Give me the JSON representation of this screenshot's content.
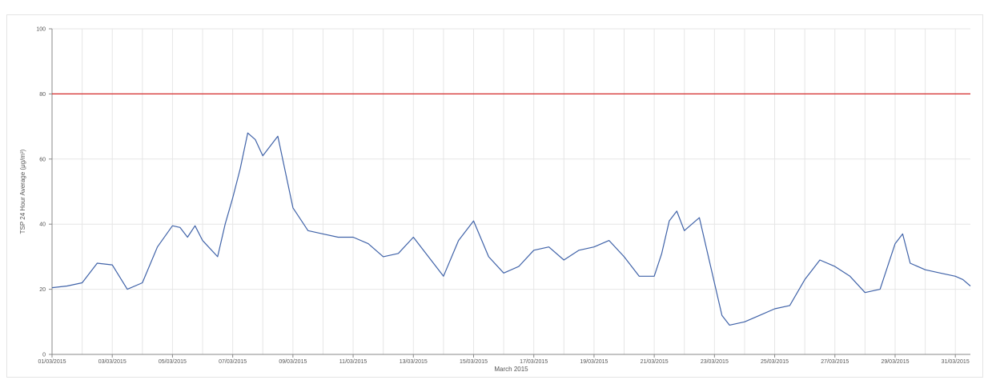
{
  "chart_data": {
    "type": "line",
    "title": "",
    "xlabel": "March 2015",
    "ylabel": "TSP 24 Hour Average (μg/m³)",
    "ylim": [
      0,
      100
    ],
    "xlim": [
      "01/03/2015",
      "31/03/2015 12:00"
    ],
    "yticks": [
      0,
      20,
      40,
      60,
      80,
      100
    ],
    "xticks": [
      "01/03/2015",
      "03/03/2015",
      "05/03/2015",
      "07/03/2015",
      "09/03/2015",
      "11/03/2015",
      "13/03/2015",
      "15/03/2015",
      "17/03/2015",
      "19/03/2015",
      "21/03/2015",
      "23/03/2015",
      "25/03/2015",
      "27/03/2015",
      "29/03/2015",
      "31/03/2015"
    ],
    "grid": true,
    "legend": "none",
    "threshold": {
      "value": 80,
      "color": "#d42a2a"
    },
    "series": [
      {
        "color": "#3f62a8",
        "x": [
          "01/03/2015 00:00",
          "01/03/2015 12:00",
          "02/03/2015 00:00",
          "02/03/2015 12:00",
          "03/03/2015 00:00",
          "03/03/2015 12:00",
          "04/03/2015 00:00",
          "04/03/2015 12:00",
          "05/03/2015 00:00",
          "05/03/2015 06:00",
          "05/03/2015 12:00",
          "05/03/2015 18:00",
          "06/03/2015 00:00",
          "06/03/2015 12:00",
          "06/03/2015 18:00",
          "07/03/2015 00:00",
          "07/03/2015 06:00",
          "07/03/2015 12:00",
          "07/03/2015 18:00",
          "08/03/2015 00:00",
          "08/03/2015 12:00",
          "09/03/2015 00:00",
          "09/03/2015 12:00",
          "10/03/2015 00:00",
          "10/03/2015 12:00",
          "11/03/2015 00:00",
          "11/03/2015 12:00",
          "12/03/2015 00:00",
          "12/03/2015 12:00",
          "13/03/2015 00:00",
          "13/03/2015 12:00",
          "14/03/2015 00:00",
          "14/03/2015 12:00",
          "15/03/2015 00:00",
          "15/03/2015 12:00",
          "16/03/2015 00:00",
          "16/03/2015 12:00",
          "17/03/2015 00:00",
          "17/03/2015 12:00",
          "18/03/2015 00:00",
          "18/03/2015 12:00",
          "19/03/2015 00:00",
          "19/03/2015 12:00",
          "20/03/2015 00:00",
          "20/03/2015 12:00",
          "21/03/2015 00:00",
          "21/03/2015 06:00",
          "21/03/2015 12:00",
          "21/03/2015 18:00",
          "22/03/2015 00:00",
          "22/03/2015 12:00",
          "23/03/2015 00:00",
          "23/03/2015 06:00",
          "23/03/2015 12:00",
          "24/03/2015 00:00",
          "24/03/2015 12:00",
          "25/03/2015 00:00",
          "25/03/2015 12:00",
          "26/03/2015 00:00",
          "26/03/2015 12:00",
          "27/03/2015 00:00",
          "27/03/2015 12:00",
          "28/03/2015 00:00",
          "28/03/2015 12:00",
          "29/03/2015 00:00",
          "29/03/2015 06:00",
          "29/03/2015 12:00",
          "30/03/2015 00:00",
          "30/03/2015 12:00",
          "31/03/2015 00:00",
          "31/03/2015 06:00",
          "31/03/2015 12:00"
        ],
        "y": [
          20.5,
          21,
          22,
          28,
          27.5,
          20,
          22,
          33,
          39.5,
          39,
          36,
          39.5,
          35,
          30,
          40,
          48,
          57,
          68,
          66,
          61,
          67,
          45,
          38,
          37,
          36,
          36,
          34,
          30,
          31,
          36,
          30,
          24,
          35,
          41,
          30,
          25,
          27,
          32,
          33,
          29,
          32,
          33,
          35,
          30,
          24,
          24,
          31,
          41,
          44,
          38,
          42,
          22,
          12,
          9,
          10,
          12,
          14,
          15,
          23,
          29,
          27,
          24,
          19,
          20,
          34,
          37,
          28,
          26,
          25,
          24,
          23,
          21
        ]
      }
    ]
  }
}
